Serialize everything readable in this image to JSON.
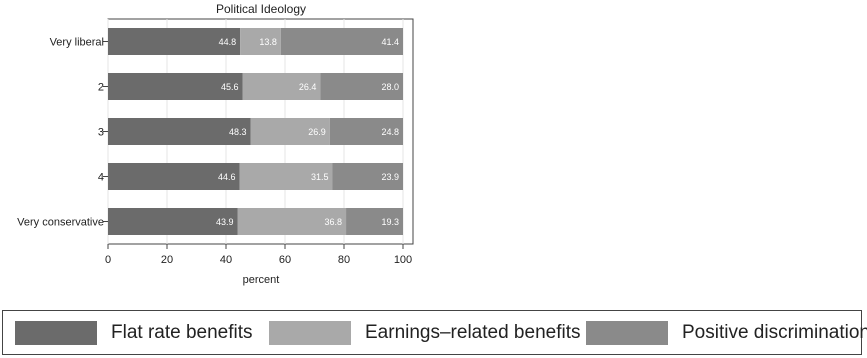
{
  "chart_data": {
    "type": "bar",
    "orientation": "horizontal",
    "stacked": true,
    "title": "Political Ideology",
    "xlabel": "percent",
    "ylabel": "",
    "xlim": [
      0,
      100
    ],
    "xticks": [
      0,
      20,
      40,
      60,
      80,
      100
    ],
    "grid": true,
    "legend_position": "bottom",
    "categories": [
      "Very liberal",
      "2",
      "3",
      "4",
      "Very conservative"
    ],
    "series": [
      {
        "name": "Flat rate benefits",
        "color": "#6b6b6b",
        "values": [
          44.8,
          45.6,
          48.3,
          44.6,
          43.9
        ],
        "labels": [
          "44.8",
          "45.6",
          "48.3",
          "44.6",
          "43.9"
        ]
      },
      {
        "name": "Earnings–related benefits",
        "color": "#a9a9a9",
        "values": [
          13.8,
          26.4,
          26.9,
          31.5,
          36.8
        ],
        "labels": [
          "13.8",
          "26.4",
          "26.9",
          "31.5",
          "36.8"
        ]
      },
      {
        "name": "Positive discrimination",
        "color": "#8a8a8a",
        "values": [
          41.4,
          28.0,
          24.8,
          23.9,
          19.3
        ],
        "labels": [
          "41.4",
          "28.0",
          "24.8",
          "23.9",
          "19.3"
        ]
      }
    ]
  }
}
